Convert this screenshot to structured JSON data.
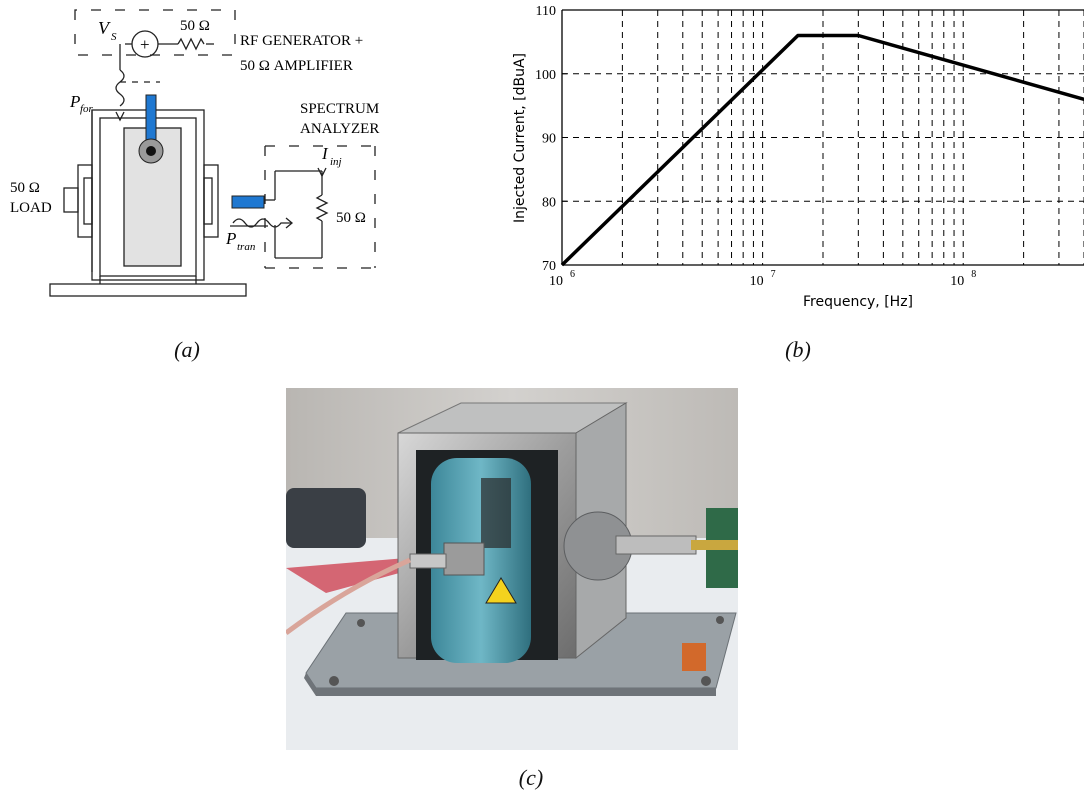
{
  "diagram": {
    "source_label": "V",
    "source_sub": "S",
    "source_symbol": "+",
    "series_resistor": "50 Ω",
    "generator_line1": "RF GENERATOR +",
    "generator_line2": "50 Ω AMPLIFIER",
    "pfor_label": "P",
    "pfor_sub": "for",
    "analyzer_line1": "SPECTRUM",
    "analyzer_line2": "ANALYZER",
    "iinj_label": "I",
    "iinj_sub": "inj",
    "load_line1": "50 Ω",
    "load_line2": "LOAD",
    "analyzer_resistor": "50 Ω",
    "ptran_label": "P",
    "ptran_sub": "tran",
    "colors": {
      "probe_blue": "#1f78d1",
      "line": "#222222",
      "core_fill": "#e2e2e2"
    }
  },
  "chart_data": {
    "type": "line",
    "title": "",
    "xlabel": "Frequency, [Hz]",
    "ylabel": "Injected Current, [dBuA]",
    "xscale": "log",
    "xlim": [
      1000000,
      400000000
    ],
    "ylim": [
      70,
      110
    ],
    "yticks": [
      70,
      80,
      90,
      100,
      110
    ],
    "xtick_labels": [
      {
        "value": 1000000,
        "base": "10",
        "exp": "6"
      },
      {
        "value": 10000000,
        "base": "10",
        "exp": "7"
      },
      {
        "value": 100000000,
        "base": "10",
        "exp": "8"
      }
    ],
    "grid": true,
    "series": [
      {
        "x": [
          1000000,
          15000000,
          30000000,
          400000000
        ],
        "y": [
          70,
          106,
          106,
          96
        ]
      }
    ],
    "line_color": "#000000"
  },
  "photo": {
    "description_free": true,
    "colors": {
      "wall": "#c9c7c5",
      "table": "#eef0f2",
      "steel": "#a6a6a6",
      "probe": "#4f9fb0",
      "cable": "#d9a59a"
    }
  },
  "captions": {
    "a": "(a)",
    "b": "(b)",
    "c": "(c)"
  }
}
